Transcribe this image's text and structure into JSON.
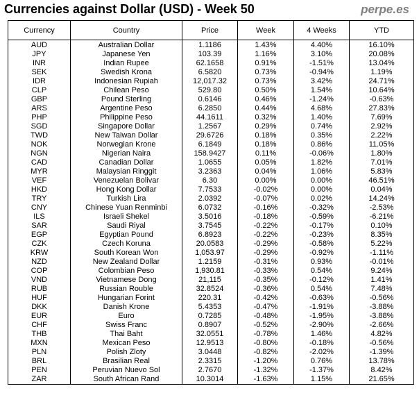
{
  "header": {
    "title": "Currencies against Dollar (USD) - Week 50",
    "brand": "perpe.es"
  },
  "colors": {
    "positive": "#008000",
    "negative": "#ff0000",
    "text": "#000000",
    "brand": "#7f7f7f"
  },
  "chart_data": {
    "type": "table",
    "title": "Currencies against Dollar (USD) - Week 50",
    "columns": [
      "Currency",
      "Country",
      "Price",
      "Week",
      "4 Weeks",
      "YTD"
    ],
    "rows": [
      [
        "AUD",
        "Australian Dollar",
        "1.1186",
        "1.43%",
        "4.40%",
        "16.10%"
      ],
      [
        "JPY",
        "Japanese Yen",
        "103.39",
        "1.16%",
        "3.10%",
        "20.08%"
      ],
      [
        "INR",
        "Indian Rupee",
        "62.1658",
        "0.91%",
        "-1.51%",
        "13.04%"
      ],
      [
        "SEK",
        "Swedish Krona",
        "6.5820",
        "0.73%",
        "-0.94%",
        "1.19%"
      ],
      [
        "IDR",
        "Indonesian Rupiah",
        "12,017.32",
        "0.73%",
        "3.42%",
        "24.71%"
      ],
      [
        "CLP",
        "Chilean Peso",
        "529.80",
        "0.50%",
        "1.54%",
        "10.64%"
      ],
      [
        "GBP",
        "Pound Sterling",
        "0.6146",
        "0.46%",
        "-1.24%",
        "-0.63%"
      ],
      [
        "ARS",
        "Argentine Peso",
        "6.2850",
        "0.44%",
        "4.68%",
        "27.83%"
      ],
      [
        "PHP",
        "Philippine Peso",
        "44.1611",
        "0.32%",
        "1.40%",
        "7.69%"
      ],
      [
        "SGD",
        "Singapore Dollar",
        "1.2567",
        "0.29%",
        "0.74%",
        "2.92%"
      ],
      [
        "TWD",
        "New Taiwan Dollar",
        "29.6726",
        "0.18%",
        "0.35%",
        "2.22%"
      ],
      [
        "NOK",
        "Norwegian Krone",
        "6.1849",
        "0.18%",
        "0.86%",
        "11.05%"
      ],
      [
        "NGN",
        "Nigerian Naira",
        "158.9427",
        "0.11%",
        "-0.06%",
        "1.80%"
      ],
      [
        "CAD",
        "Canadian Dollar",
        "1.0655",
        "0.05%",
        "1.82%",
        "7.01%"
      ],
      [
        "MYR",
        "Malaysian Ringgit",
        "3.2363",
        "0.04%",
        "1.06%",
        "5.83%"
      ],
      [
        "VEF",
        "Venezuelan Bolivar",
        "6.30",
        "0.00%",
        "0.00%",
        "46.51%"
      ],
      [
        "HKD",
        "Hong Kong Dollar",
        "7.7533",
        "-0.02%",
        "0.00%",
        "0.04%"
      ],
      [
        "TRY",
        "Turkish Lira",
        "2.0392",
        "-0.07%",
        "0.02%",
        "14.24%"
      ],
      [
        "CNY",
        "Chinese Yuan Renminbi",
        "6.0732",
        "-0.16%",
        "-0.32%",
        "-2.53%"
      ],
      [
        "ILS",
        "Israeli Shekel",
        "3.5016",
        "-0.18%",
        "-0.59%",
        "-6.21%"
      ],
      [
        "SAR",
        "Saudi Riyal",
        "3.7545",
        "-0.22%",
        "-0.17%",
        "0.10%"
      ],
      [
        "EGP",
        "Egyptian Pound",
        "6.8923",
        "-0.22%",
        "-0.23%",
        "8.35%"
      ],
      [
        "CZK",
        "Czech Koruna",
        "20.0583",
        "-0.29%",
        "-0.58%",
        "5.22%"
      ],
      [
        "KRW",
        "South Korean Won",
        "1,053.97",
        "-0.29%",
        "-0.92%",
        "-1.11%"
      ],
      [
        "NZD",
        "New Zealand Dollar",
        "1.2159",
        "-0.31%",
        "0.93%",
        "-0.01%"
      ],
      [
        "COP",
        "Colombian Peso",
        "1,930.81",
        "-0.33%",
        "0.54%",
        "9.24%"
      ],
      [
        "VND",
        "Vietnamese Dong",
        "21,115",
        "-0.35%",
        "-0.12%",
        "1.41%"
      ],
      [
        "RUB",
        "Russian Rouble",
        "32.8524",
        "-0.36%",
        "0.54%",
        "7.48%"
      ],
      [
        "HUF",
        "Hungarian Forint",
        "220.31",
        "-0.42%",
        "-0.63%",
        "-0.56%"
      ],
      [
        "DKK",
        "Danish Krone",
        "5.4353",
        "-0.47%",
        "-1.91%",
        "-3.88%"
      ],
      [
        "EUR",
        "Euro",
        "0.7285",
        "-0.48%",
        "-1.95%",
        "-3.88%"
      ],
      [
        "CHF",
        "Swiss Franc",
        "0.8907",
        "-0.52%",
        "-2.90%",
        "-2.66%"
      ],
      [
        "THB",
        "Thai Baht",
        "32.0551",
        "-0.78%",
        "1.46%",
        "4.82%"
      ],
      [
        "MXN",
        "Mexican Peso",
        "12.9513",
        "-0.80%",
        "-0.18%",
        "-0.56%"
      ],
      [
        "PLN",
        "Polish Zloty",
        "3.0448",
        "-0.82%",
        "-2.02%",
        "-1.39%"
      ],
      [
        "BRL",
        "Brasilian Real",
        "2.3315",
        "-1.20%",
        "0.76%",
        "13.78%"
      ],
      [
        "PEN",
        "Peruvian Nuevo Sol",
        "2.7670",
        "-1.32%",
        "-1.37%",
        "8.42%"
      ],
      [
        "ZAR",
        "South African Rand",
        "10.3014",
        "-1.63%",
        "1.15%",
        "21.65%"
      ]
    ]
  }
}
